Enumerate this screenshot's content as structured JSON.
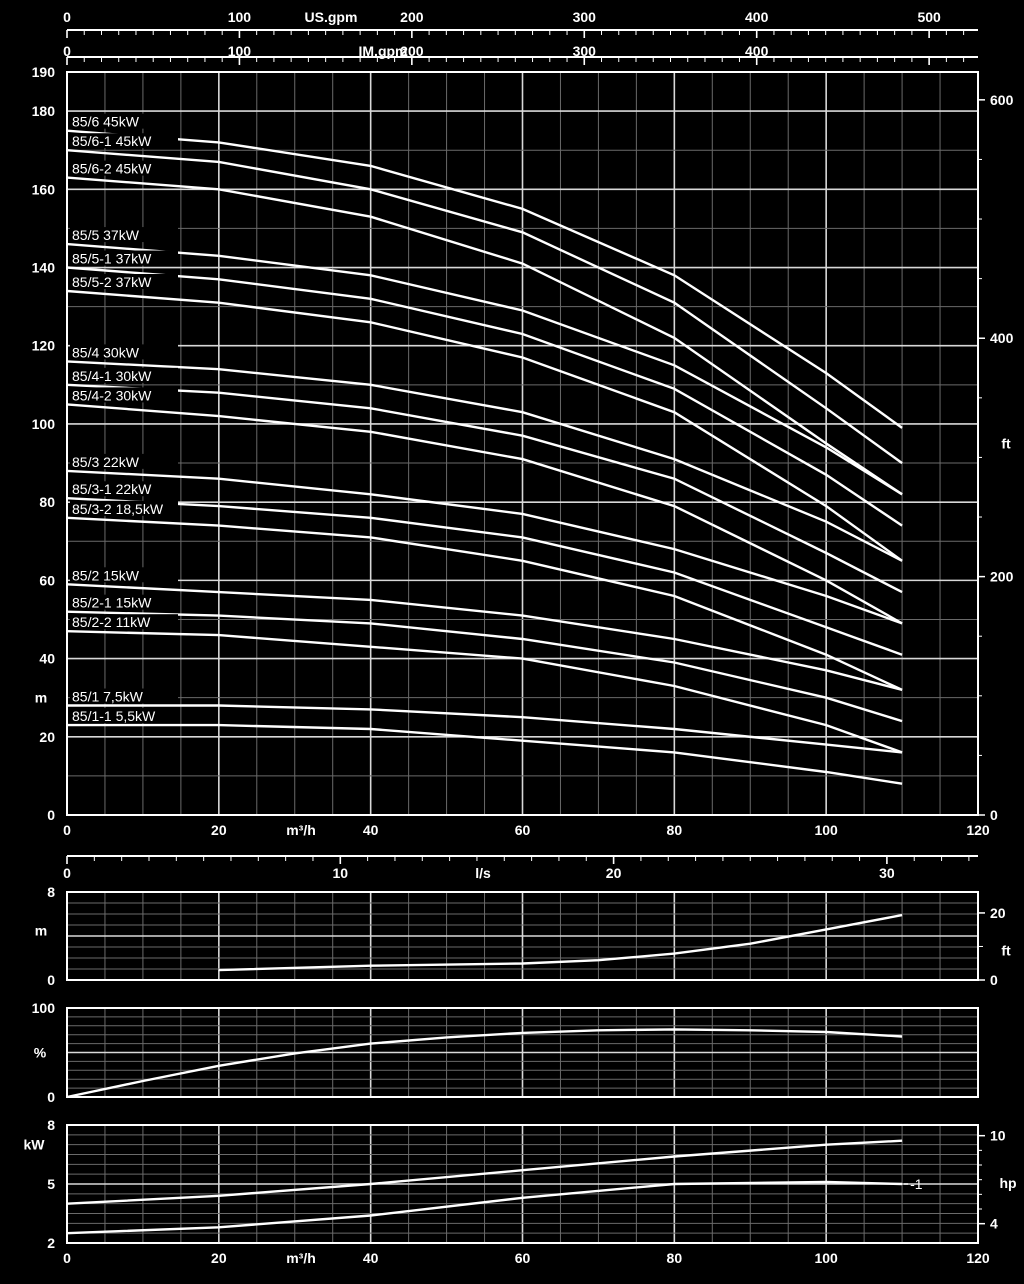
{
  "chart_data": [
    {
      "type": "line",
      "id": "head",
      "x_unit": "m³/h",
      "xlim": [
        0,
        120
      ],
      "x_ticks": [
        0,
        20,
        40,
        60,
        80,
        100,
        120
      ],
      "y_unit": "m",
      "ylim": [
        0,
        190
      ],
      "y_ticks": [
        0,
        20,
        40,
        60,
        80,
        100,
        120,
        140,
        160,
        180,
        190
      ],
      "y2_unit": "ft",
      "y2_ticks": [
        0,
        200,
        400,
        600
      ],
      "x2_unit": "IM.gpm",
      "x2_ticks": [
        0,
        100,
        200,
        300,
        400
      ],
      "x3_unit": "US.gpm",
      "x3_ticks": [
        0,
        100,
        200,
        300,
        400,
        500
      ],
      "x4_unit": "l/s",
      "x4_ticks": [
        0,
        10,
        20,
        30
      ],
      "grid": true,
      "x": [
        0,
        20,
        40,
        60,
        80,
        100,
        110
      ],
      "series": [
        {
          "name": "85/6 45kW",
          "values": [
            175,
            172,
            166,
            155,
            138,
            113,
            99
          ]
        },
        {
          "name": "85/6-1 45kW",
          "values": [
            170,
            167,
            160,
            149,
            131,
            104,
            90
          ]
        },
        {
          "name": "85/6-2 45kW",
          "values": [
            163,
            160,
            153,
            141,
            122,
            95,
            82
          ]
        },
        {
          "name": "85/5 37kW",
          "values": [
            146,
            143,
            138,
            129,
            115,
            94,
            82
          ]
        },
        {
          "name": "85/5-1 37kW",
          "values": [
            140,
            137,
            132,
            123,
            109,
            87,
            74
          ]
        },
        {
          "name": "85/5-2 37kW",
          "values": [
            134,
            131,
            126,
            117,
            103,
            79,
            65
          ]
        },
        {
          "name": "85/4 30kW",
          "values": [
            116,
            114,
            110,
            103,
            91,
            75,
            65
          ]
        },
        {
          "name": "85/4-1 30kW",
          "values": [
            110,
            108,
            104,
            97,
            86,
            67,
            57
          ]
        },
        {
          "name": "85/4-2 30kW",
          "values": [
            105,
            102,
            98,
            91,
            79,
            60,
            49
          ]
        },
        {
          "name": "85/3 22kW",
          "values": [
            88,
            86,
            82,
            77,
            68,
            56,
            49
          ]
        },
        {
          "name": "85/3-1 22kW",
          "values": [
            81,
            79,
            76,
            71,
            62,
            48,
            41
          ]
        },
        {
          "name": "85/3-2 18,5kW",
          "values": [
            76,
            74,
            71,
            65,
            56,
            41,
            32
          ]
        },
        {
          "name": "85/2  15kW",
          "values": [
            59,
            57,
            55,
            51,
            45,
            37,
            32
          ]
        },
        {
          "name": "85/2-1 15kW",
          "values": [
            52,
            51,
            49,
            45,
            39,
            30,
            24
          ]
        },
        {
          "name": "85/2-2 11kW",
          "values": [
            47,
            46,
            43,
            40,
            33,
            23,
            16
          ]
        },
        {
          "name": "85/1  7,5kW",
          "values": [
            28,
            28,
            27,
            25,
            22,
            18,
            16
          ]
        },
        {
          "name": "85/1-1 5,5kW",
          "values": [
            23,
            23,
            22,
            19,
            16,
            11,
            8
          ]
        }
      ]
    },
    {
      "type": "line",
      "id": "npsh",
      "x_unit": "m³/h",
      "xlim": [
        0,
        120
      ],
      "y_unit": "m",
      "ylim": [
        0,
        8
      ],
      "y_ticks": [
        0,
        8
      ],
      "y2_unit": "ft",
      "y2_ticks": [
        0,
        20
      ],
      "grid": true,
      "x": [
        20,
        40,
        60,
        70,
        80,
        90,
        100,
        110
      ],
      "series": [
        {
          "values": [
            0.9,
            1.3,
            1.5,
            1.8,
            2.4,
            3.3,
            4.6,
            5.9
          ]
        }
      ]
    },
    {
      "type": "line",
      "id": "efficiency",
      "x_unit": "m³/h",
      "xlim": [
        0,
        120
      ],
      "y_unit": "%",
      "ylim": [
        0,
        100
      ],
      "y_ticks": [
        0,
        100
      ],
      "grid": true,
      "x": [
        0,
        10,
        20,
        30,
        40,
        50,
        60,
        70,
        80,
        90,
        100,
        110
      ],
      "series": [
        {
          "values": [
            0,
            18,
            35,
            49,
            60,
            67,
            72,
            75,
            76,
            75,
            73,
            68
          ]
        }
      ]
    },
    {
      "type": "line",
      "id": "power",
      "x_unit": "m³/h",
      "xlim": [
        0,
        120
      ],
      "x_ticks": [
        0,
        20,
        40,
        60,
        80,
        100,
        120
      ],
      "y_unit": "kW",
      "ylim": [
        2,
        8
      ],
      "y_ticks": [
        2,
        5,
        8
      ],
      "y2_unit": "hp",
      "y2_ticks": [
        4,
        10
      ],
      "grid": true,
      "x": [
        0,
        20,
        40,
        60,
        80,
        100,
        110
      ],
      "series": [
        {
          "values": [
            4.0,
            4.4,
            5.0,
            5.7,
            6.4,
            7.0,
            7.2
          ]
        },
        {
          "name": "-1",
          "values": [
            2.5,
            2.8,
            3.4,
            4.3,
            5.0,
            5.1,
            5.0
          ]
        }
      ]
    }
  ]
}
